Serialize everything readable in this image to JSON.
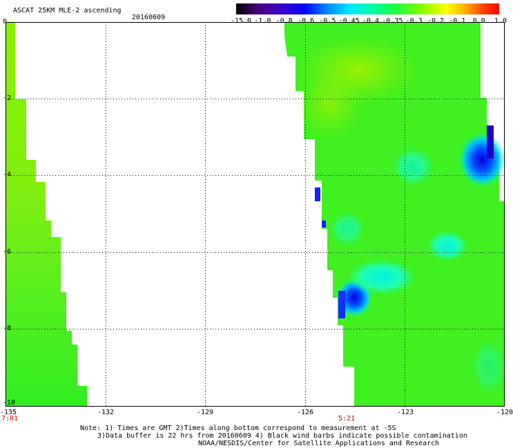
{
  "header": {
    "title": "ASCAT 25KM MLE-2 ascending",
    "date": "20160609"
  },
  "colorbar": {
    "labels": [
      "-15.0",
      "-1.0",
      "-0.8",
      "-0.6",
      "-0.5",
      "-0.45",
      "-0.4",
      "-0.35",
      "-0.3",
      "-0.2",
      "-0.1",
      "0.0",
      "1.0"
    ],
    "colors": [
      "#000000",
      "#4a007a",
      "#3a00c8",
      "#0000ff",
      "#0080ff",
      "#00e8ff",
      "#00ffa0",
      "#20ff40",
      "#80ff00",
      "#ffff00",
      "#ffa000",
      "#ff4000",
      "#ff0000"
    ]
  },
  "axes": {
    "y_labels": [
      "0",
      "-2",
      "-4",
      "-6",
      "-8",
      "-10"
    ],
    "x_labels": [
      "-135",
      "-132",
      "-129",
      "-126",
      "-123",
      "-120"
    ],
    "time_labels": [
      "7:01",
      "5:21"
    ]
  },
  "notes": [
    "Note: 1) Times are GMT 2)Times along bottom correspond to measurement at -5S",
    "3)Data buffer is 22 hrs from 20160609 4) Black wind barbs indicate possible contamination",
    "NOAA/NESDIS/Center for Satellite Applications and Research"
  ]
}
